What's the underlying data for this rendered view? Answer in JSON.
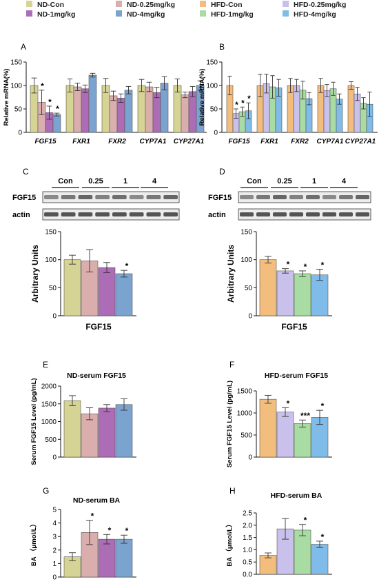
{
  "legend": [
    {
      "label": "ND-Con",
      "color": "#d6d494"
    },
    {
      "label": "ND-0.25mg/kg",
      "color": "#dbaeae"
    },
    {
      "label": "HFD-Con",
      "color": "#f3bd7d"
    },
    {
      "label": "HFD-0.25mg/kg",
      "color": "#c9c0ec"
    },
    {
      "label": "ND-1mg/kg",
      "color": "#ac6cb6"
    },
    {
      "label": "ND-4mg/kg",
      "color": "#7ba3cf"
    },
    {
      "label": "HFD-1mg/kg",
      "color": "#a9dca3"
    },
    {
      "label": "HFD-4mg/kg",
      "color": "#7fbce9"
    }
  ],
  "blots": [
    {
      "panel": "C",
      "lanes": [
        "Con",
        "0.25",
        "1",
        "4"
      ],
      "rows": [
        "FGF15",
        "actin"
      ]
    },
    {
      "panel": "D",
      "lanes": [
        "Con",
        "0.25",
        "1",
        "4"
      ],
      "rows": [
        "FGF15",
        "actin"
      ]
    }
  ],
  "chart_data": [
    {
      "panel": "A",
      "type": "bar",
      "title": "",
      "xlabel": "",
      "ylabel": "Relative mRNA(%)",
      "ylim": [
        0,
        150
      ],
      "yticks": [
        0,
        50,
        100,
        150
      ],
      "categories": [
        "FGF15",
        "FXR1",
        "FXR2",
        "CYP7A1",
        "CYP27A1"
      ],
      "series": [
        {
          "name": "ND-Con",
          "color": "#d6d494",
          "values": [
            100,
            100,
            100,
            100,
            100
          ],
          "errors": [
            16,
            14,
            15,
            13,
            14
          ],
          "sig": [
            "",
            "",
            "",
            "",
            ""
          ]
        },
        {
          "name": "ND-0.25mg/kg",
          "color": "#dbaeae",
          "values": [
            64,
            97,
            78,
            97,
            80
          ],
          "errors": [
            26,
            8,
            10,
            10,
            6
          ],
          "sig": [
            "*",
            "",
            "",
            "",
            ""
          ]
        },
        {
          "name": "ND-1mg/kg",
          "color": "#ac6cb6",
          "values": [
            42,
            93,
            73,
            85,
            87
          ],
          "errors": [
            14,
            8,
            9,
            11,
            11
          ],
          "sig": [
            "*",
            "",
            "",
            "",
            ""
          ]
        },
        {
          "name": "ND-4mg/kg",
          "color": "#7ba3cf",
          "values": [
            38,
            122,
            90,
            105,
            100
          ],
          "errors": [
            3,
            4,
            8,
            14,
            10
          ],
          "sig": [
            "*",
            "",
            "",
            "",
            ""
          ]
        }
      ]
    },
    {
      "panel": "B",
      "type": "bar",
      "title": "",
      "xlabel": "",
      "ylabel": "Relative mRNA(%)",
      "ylim": [
        0,
        150
      ],
      "yticks": [
        0,
        50,
        100,
        150
      ],
      "categories": [
        "FGF15",
        "FXR1",
        "FXR2",
        "CYP7A1",
        "CYP27A1"
      ],
      "series": [
        {
          "name": "HFD-Con",
          "color": "#f3bd7d",
          "values": [
            100,
            100,
            100,
            100,
            100
          ],
          "errors": [
            20,
            24,
            15,
            15,
            8
          ],
          "sig": [
            "",
            "",
            "",
            "",
            ""
          ]
        },
        {
          "name": "HFD-0.25mg/kg",
          "color": "#c9c0ec",
          "values": [
            40,
            104,
            100,
            89,
            82
          ],
          "errors": [
            10,
            20,
            13,
            13,
            14
          ],
          "sig": [
            "*",
            "",
            "",
            "",
            ""
          ]
        },
        {
          "name": "HFD-1mg/kg",
          "color": "#a9dca3",
          "values": [
            44,
            97,
            90,
            93,
            62
          ],
          "errors": [
            10,
            24,
            19,
            14,
            12
          ],
          "sig": [
            "*",
            "",
            "",
            "",
            ""
          ]
        },
        {
          "name": "HFD-4mg/kg",
          "color": "#7fbce9",
          "values": [
            46,
            95,
            72,
            71,
            60
          ],
          "errors": [
            17,
            18,
            13,
            11,
            26
          ],
          "sig": [
            "*",
            "",
            "",
            "",
            ""
          ]
        }
      ]
    },
    {
      "panel": "C",
      "type": "bar",
      "title": "",
      "xlabel": "FGF15",
      "ylabel": "Arbitrary Units",
      "ylim": [
        0,
        150
      ],
      "yticks": [
        0,
        50,
        100,
        150
      ],
      "categories": [
        "ND-Con",
        "ND-0.25mg/kg",
        "ND-1mg/kg",
        "ND-4mg/kg"
      ],
      "values": [
        100,
        98,
        86,
        75
      ],
      "errors": [
        8,
        20,
        9,
        6
      ],
      "sig": [
        "",
        "",
        "",
        "*"
      ],
      "colors": [
        "#d6d494",
        "#dbaeae",
        "#ac6cb6",
        "#7ba3cf"
      ]
    },
    {
      "panel": "D",
      "type": "bar",
      "title": "",
      "xlabel": "FGF15",
      "ylabel": "Arbitrary Units",
      "ylim": [
        0,
        150
      ],
      "yticks": [
        0,
        50,
        100,
        150
      ],
      "categories": [
        "HFD-Con",
        "HFD-0.25mg/kg",
        "HFD-1mg/kg",
        "HFD-4mg/kg"
      ],
      "values": [
        100,
        80,
        75,
        73
      ],
      "errors": [
        6,
        4,
        5,
        10
      ],
      "sig": [
        "",
        "*",
        "*",
        "*"
      ],
      "colors": [
        "#f3bd7d",
        "#c9c0ec",
        "#a9dca3",
        "#7fbce9"
      ]
    },
    {
      "panel": "E",
      "type": "bar",
      "title": "ND-serum FGF15",
      "xlabel": "",
      "ylabel": "Serum FGF15 Level (pg/mL)",
      "ylim": [
        0,
        2000
      ],
      "yticks": [
        0,
        500,
        1000,
        1500,
        2000
      ],
      "categories": [
        "ND-Con",
        "ND-0.25mg/kg",
        "ND-1mg/kg",
        "ND-4mg/kg"
      ],
      "values": [
        1590,
        1220,
        1380,
        1480
      ],
      "errors": [
        140,
        170,
        100,
        160
      ],
      "sig": [
        "",
        "",
        "",
        ""
      ],
      "colors": [
        "#d6d494",
        "#dbaeae",
        "#ac6cb6",
        "#7ba3cf"
      ]
    },
    {
      "panel": "F",
      "type": "bar",
      "title": "HFD-serum FGF15",
      "xlabel": "",
      "ylabel": "Serum FGF15 Level (pg/mL)",
      "ylim": [
        0,
        1500
      ],
      "yticks": [
        0,
        500,
        1000,
        1500
      ],
      "categories": [
        "HFD-Con",
        "HFD-0.25mg/kg",
        "HFD-1mg/kg",
        "HFD-4mg/kg"
      ],
      "values": [
        1310,
        1020,
        760,
        900
      ],
      "errors": [
        90,
        100,
        80,
        160
      ],
      "sig": [
        "",
        "*",
        "***",
        "*"
      ],
      "colors": [
        "#f3bd7d",
        "#c9c0ec",
        "#a9dca3",
        "#7fbce9"
      ]
    },
    {
      "panel": "G",
      "type": "bar",
      "title": "ND-serum BA",
      "xlabel": "",
      "ylabel": "BA （μmol/L）",
      "ylim": [
        0,
        5
      ],
      "yticks": [
        0,
        1,
        2,
        3,
        4,
        5
      ],
      "categories": [
        "ND-Con",
        "ND-0.25mg/kg",
        "ND-1mg/kg",
        "ND-4mg/kg"
      ],
      "values": [
        1.5,
        3.3,
        2.8,
        2.8
      ],
      "errors": [
        0.3,
        0.9,
        0.35,
        0.3
      ],
      "sig": [
        "",
        "*",
        "*",
        "*"
      ],
      "colors": [
        "#d6d494",
        "#dbaeae",
        "#ac6cb6",
        "#7ba3cf"
      ]
    },
    {
      "panel": "H",
      "type": "bar",
      "title": "HFD-serum BA",
      "xlabel": "",
      "ylabel": "BA （μmol/L）",
      "ylim": [
        0,
        2.5
      ],
      "yticks": [
        0.0,
        0.5,
        1.0,
        1.5,
        2.0,
        2.5
      ],
      "categories": [
        "HFD-Con",
        "HFD-0.25mg/kg",
        "HFD-1mg/kg",
        "HFD-4mg/kg"
      ],
      "values": [
        0.77,
        1.85,
        1.8,
        1.22
      ],
      "errors": [
        0.1,
        0.42,
        0.23,
        0.13
      ],
      "sig": [
        "",
        "",
        "*",
        "*"
      ],
      "colors": [
        "#f3bd7d",
        "#c9c0ec",
        "#a9dca3",
        "#7fbce9"
      ]
    }
  ]
}
